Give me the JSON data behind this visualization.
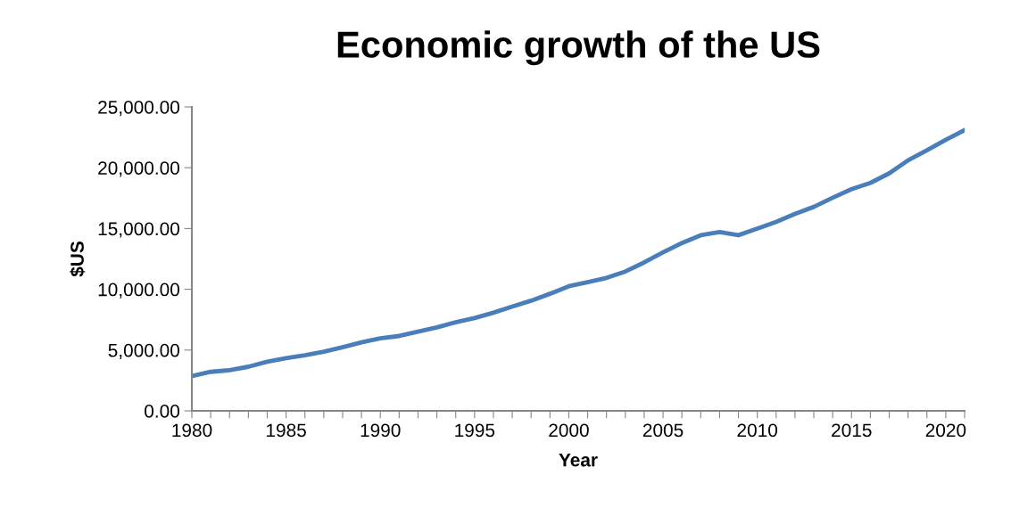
{
  "chart_data": {
    "type": "line",
    "title": "Economic growth of the US",
    "xlabel": "Year",
    "ylabel": "$US",
    "x": [
      1980,
      1981,
      1982,
      1983,
      1984,
      1985,
      1986,
      1987,
      1988,
      1989,
      1990,
      1991,
      1992,
      1993,
      1994,
      1995,
      1996,
      1997,
      1998,
      1999,
      2000,
      2001,
      2002,
      2003,
      2004,
      2005,
      2006,
      2007,
      2008,
      2009,
      2010,
      2011,
      2012,
      2013,
      2014,
      2015,
      2016,
      2017,
      2018,
      2019,
      2020,
      2021
    ],
    "series": [
      {
        "color": "#4a7ebb",
        "values": [
          2860,
          3210,
          3340,
          3630,
          4040,
          4340,
          4580,
          4860,
          5240,
          5640,
          5960,
          6160,
          6520,
          6860,
          7290,
          7640,
          8070,
          8580,
          9060,
          9630,
          10250,
          10580,
          10940,
          11460,
          12210,
          13040,
          13810,
          14450,
          14710,
          14450,
          14990,
          15540,
          16200,
          16780,
          17530,
          18240,
          18750,
          19540,
          20610,
          21430,
          22300,
          23100
        ]
      }
    ],
    "xlim": [
      1980,
      2021
    ],
    "xticks": [
      1980,
      {
        "value": 1981,
        "label": null
      },
      {
        "value": 1982,
        "label": null
      },
      {
        "value": 1983,
        "label": null
      },
      {
        "value": 1984,
        "label": null
      },
      1985,
      {
        "value": 1986,
        "label": null
      },
      {
        "value": 1987,
        "label": null
      },
      {
        "value": 1988,
        "label": null
      },
      {
        "value": 1989,
        "label": null
      },
      1990,
      {
        "value": 1991,
        "label": null
      },
      {
        "value": 1992,
        "label": null
      },
      {
        "value": 1993,
        "label": null
      },
      {
        "value": 1994,
        "label": null
      },
      1995,
      {
        "value": 1996,
        "label": null
      },
      {
        "value": 1997,
        "label": null
      },
      {
        "value": 1998,
        "label": null
      },
      {
        "value": 1999,
        "label": null
      },
      2000,
      {
        "value": 2001,
        "label": null
      },
      {
        "value": 2002,
        "label": null
      },
      {
        "value": 2003,
        "label": null
      },
      {
        "value": 2004,
        "label": null
      },
      2005,
      {
        "value": 2006,
        "label": null
      },
      {
        "value": 2007,
        "label": null
      },
      {
        "value": 2008,
        "label": null
      },
      {
        "value": 2009,
        "label": null
      },
      2010,
      {
        "value": 2011,
        "label": null
      },
      {
        "value": 2012,
        "label": null
      },
      {
        "value": 2013,
        "label": null
      },
      {
        "value": 2014,
        "label": null
      },
      2015,
      {
        "value": 2016,
        "label": null
      },
      {
        "value": 2017,
        "label": null
      },
      {
        "value": 2018,
        "label": null
      },
      {
        "value": 2019,
        "label": null
      },
      2020,
      {
        "value": 2021,
        "label": null
      }
    ],
    "ylim": [
      0,
      25000
    ],
    "yticks": [
      {
        "value": 0,
        "label": "0.00"
      },
      {
        "value": 5000,
        "label": "5,000.00"
      },
      {
        "value": 10000,
        "label": "10,000.00"
      },
      {
        "value": 15000,
        "label": "15,000.00"
      },
      {
        "value": 20000,
        "label": "20,000.00"
      },
      {
        "value": 25000,
        "label": "25,000.00"
      }
    ],
    "grid": false,
    "legend": false,
    "marker": "none",
    "line_style": "solid"
  }
}
